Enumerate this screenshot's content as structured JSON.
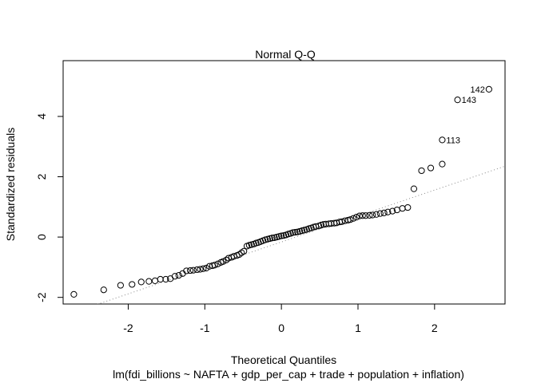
{
  "chart_data": {
    "type": "scatter",
    "title": "Normal Q-Q",
    "xlabel": "Theoretical Quantiles",
    "subtitle": "lm(fdi_billions ~ NAFTA + gdp_per_cap + trade + population + inflation)",
    "ylabel": "Standardized residuals",
    "xlim": [
      -2.85,
      2.92
    ],
    "ylim": [
      -2.22,
      5.85
    ],
    "x_ticks": [
      -2,
      -1,
      0,
      1,
      2
    ],
    "y_ticks": [
      -2,
      0,
      2,
      4
    ],
    "grid": false,
    "reference_line": {
      "style": "dotted",
      "color": "#888888",
      "x": [
        -2.6,
        2.92
      ],
      "y": [
        -2.4,
        2.35
      ]
    },
    "labeled_points": [
      {
        "label": "142",
        "x": 2.71,
        "y": 4.9
      },
      {
        "label": "143",
        "x": 2.3,
        "y": 4.55
      },
      {
        "label": "113",
        "x": 2.1,
        "y": 3.22
      }
    ],
    "points": [
      [
        -2.71,
        -1.9
      ],
      [
        -2.32,
        -1.75
      ],
      [
        -2.1,
        -1.6
      ],
      [
        -1.95,
        -1.57
      ],
      [
        -1.83,
        -1.49
      ],
      [
        -1.73,
        -1.47
      ],
      [
        -1.65,
        -1.45
      ],
      [
        -1.58,
        -1.4
      ],
      [
        -1.51,
        -1.4
      ],
      [
        -1.45,
        -1.38
      ],
      [
        -1.39,
        -1.3
      ],
      [
        -1.34,
        -1.27
      ],
      [
        -1.29,
        -1.21
      ],
      [
        -1.24,
        -1.12
      ],
      [
        -1.19,
        -1.11
      ],
      [
        -1.15,
        -1.1
      ],
      [
        -1.1,
        -1.08
      ],
      [
        -1.06,
        -1.07
      ],
      [
        -1.02,
        -1.05
      ],
      [
        -0.98,
        -1.03
      ],
      [
        -0.94,
        -0.97
      ],
      [
        -0.9,
        -0.95
      ],
      [
        -0.87,
        -0.93
      ],
      [
        -0.83,
        -0.89
      ],
      [
        -0.79,
        -0.84
      ],
      [
        -0.76,
        -0.81
      ],
      [
        -0.72,
        -0.76
      ],
      [
        -0.69,
        -0.7
      ],
      [
        -0.65,
        -0.67
      ],
      [
        -0.62,
        -0.64
      ],
      [
        -0.58,
        -0.61
      ],
      [
        -0.55,
        -0.58
      ],
      [
        -0.52,
        -0.52
      ],
      [
        -0.49,
        -0.47
      ],
      [
        -0.45,
        -0.3
      ],
      [
        -0.42,
        -0.27
      ],
      [
        -0.39,
        -0.25
      ],
      [
        -0.36,
        -0.23
      ],
      [
        -0.33,
        -0.2
      ],
      [
        -0.3,
        -0.18
      ],
      [
        -0.27,
        -0.15
      ],
      [
        -0.24,
        -0.12
      ],
      [
        -0.21,
        -0.09
      ],
      [
        -0.18,
        -0.07
      ],
      [
        -0.15,
        -0.05
      ],
      [
        -0.12,
        -0.03
      ],
      [
        -0.09,
        -0.02
      ],
      [
        -0.06,
        0.0
      ],
      [
        -0.03,
        0.02
      ],
      [
        0.0,
        0.04
      ],
      [
        0.03,
        0.05
      ],
      [
        0.06,
        0.07
      ],
      [
        0.09,
        0.1
      ],
      [
        0.12,
        0.12
      ],
      [
        0.15,
        0.15
      ],
      [
        0.18,
        0.16
      ],
      [
        0.21,
        0.17
      ],
      [
        0.24,
        0.19
      ],
      [
        0.27,
        0.21
      ],
      [
        0.3,
        0.23
      ],
      [
        0.33,
        0.25
      ],
      [
        0.36,
        0.28
      ],
      [
        0.39,
        0.3
      ],
      [
        0.42,
        0.33
      ],
      [
        0.45,
        0.35
      ],
      [
        0.49,
        0.37
      ],
      [
        0.52,
        0.4
      ],
      [
        0.55,
        0.42
      ],
      [
        0.58,
        0.43
      ],
      [
        0.62,
        0.44
      ],
      [
        0.65,
        0.45
      ],
      [
        0.69,
        0.46
      ],
      [
        0.72,
        0.47
      ],
      [
        0.76,
        0.5
      ],
      [
        0.79,
        0.51
      ],
      [
        0.83,
        0.54
      ],
      [
        0.87,
        0.56
      ],
      [
        0.9,
        0.58
      ],
      [
        0.94,
        0.62
      ],
      [
        0.98,
        0.66
      ],
      [
        1.02,
        0.7
      ],
      [
        1.06,
        0.71
      ],
      [
        1.1,
        0.71
      ],
      [
        1.15,
        0.72
      ],
      [
        1.19,
        0.73
      ],
      [
        1.24,
        0.75
      ],
      [
        1.29,
        0.78
      ],
      [
        1.34,
        0.8
      ],
      [
        1.39,
        0.83
      ],
      [
        1.45,
        0.86
      ],
      [
        1.51,
        0.9
      ],
      [
        1.58,
        0.95
      ],
      [
        1.65,
        0.98
      ],
      [
        1.73,
        1.6
      ],
      [
        1.83,
        2.2
      ],
      [
        1.95,
        2.29
      ],
      [
        2.1,
        2.42
      ],
      [
        2.1,
        3.22
      ],
      [
        2.3,
        4.55
      ],
      [
        2.71,
        4.9
      ]
    ]
  }
}
